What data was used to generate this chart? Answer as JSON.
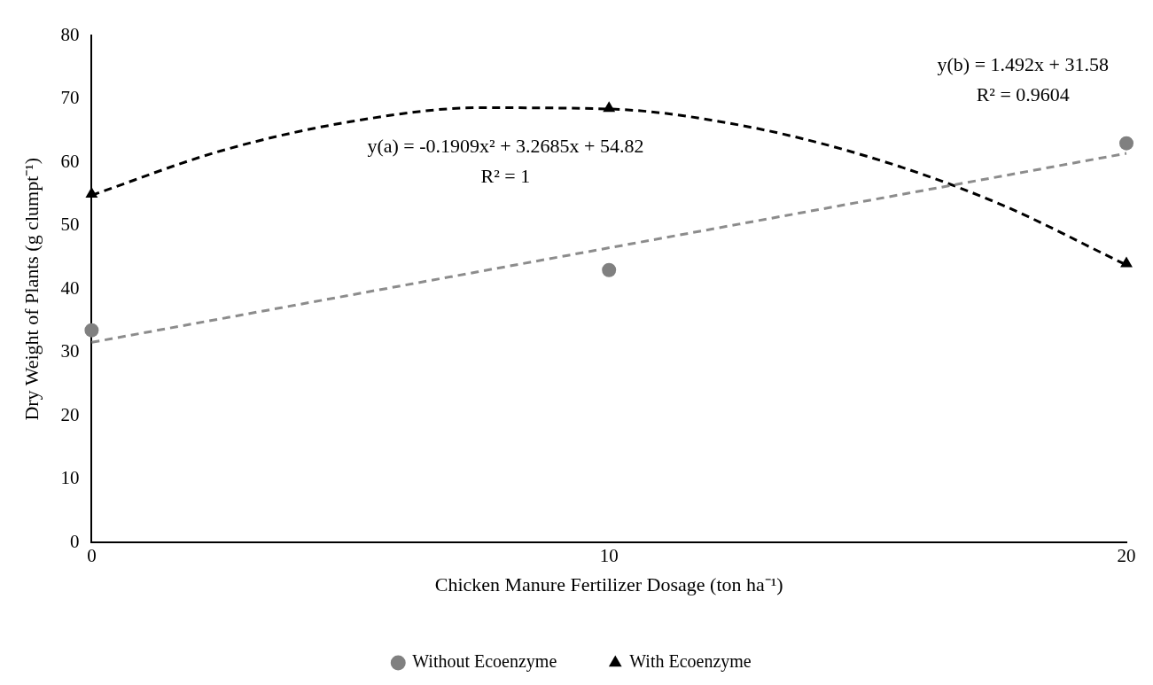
{
  "chart_data": {
    "type": "scatter",
    "xlabel": "Chicken Manure Fertilizer Dosage (ton ha⁻¹)",
    "ylabel": "Dry Weight of Plants (g clumpt⁻¹)",
    "xlim": [
      0,
      20
    ],
    "xticks": [
      0,
      10,
      20
    ],
    "ylim": [
      0,
      80
    ],
    "yticks": [
      0,
      10,
      20,
      30,
      40,
      50,
      60,
      70,
      80
    ],
    "grid": false,
    "legend": "bottom",
    "series": [
      {
        "name": "Without Ecoenzyme",
        "color": "#808080",
        "marker": "circle",
        "x": [
          0,
          10,
          20
        ],
        "values": [
          33.5,
          43,
          63
        ]
      },
      {
        "name": "With Ecoenzyme",
        "color": "#000000",
        "marker": "triangle",
        "x": [
          0,
          10,
          20
        ],
        "values": [
          55,
          68.5,
          44
        ]
      },
      {
        "type": "line",
        "color": "#8c8c8c",
        "line_style": "dashed",
        "marker": "none",
        "x": [
          0,
          20
        ],
        "values": [
          31.6,
          61.4
        ]
      },
      {
        "type": "line",
        "color": "#000000",
        "line_style": "dashed",
        "marker": "none",
        "x": [
          0,
          2.5,
          5,
          7.5,
          10,
          12.5,
          15,
          17.5,
          20
        ],
        "values": [
          54.8,
          61.8,
          66.4,
          68.6,
          68.4,
          65.9,
          60.9,
          53.6,
          43.8
        ]
      }
    ],
    "annotations": [
      "y(a) = -0.1909x² + 3.2685x + 54.82",
      "R² = 1",
      "y(b) = 1.492x + 31.58",
      "R² = 0.9604"
    ]
  }
}
